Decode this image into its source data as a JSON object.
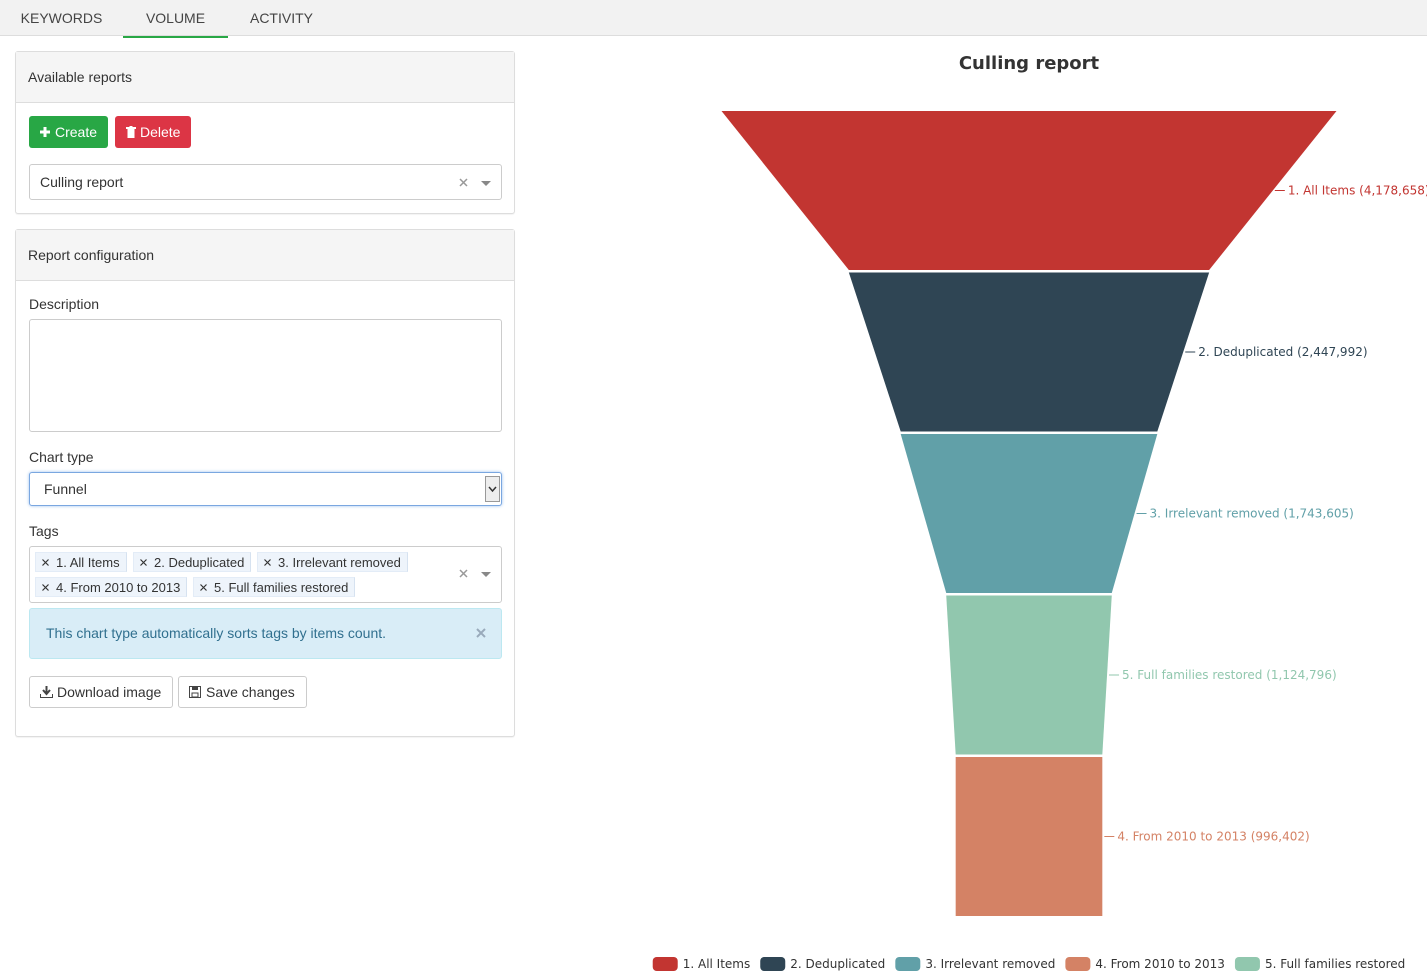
{
  "ui": {
    "tabs": [
      "KEYWORDS",
      "VOLUME",
      "ACTIVITY"
    ],
    "available_reports": {
      "heading": "Available reports",
      "create": "Create",
      "delete": "Delete",
      "selected_report": "Culling report"
    },
    "report_configuration": {
      "heading": "Report configuration",
      "description_label": "Description",
      "chart_type_label": "Chart type",
      "chart_type": "Funnel",
      "tags_label": "Tags",
      "tags": [
        "1. All Items",
        "2. Deduplicated",
        "3. Irrelevant removed",
        "4. From 2010 to 2013",
        "5. Full families restored"
      ],
      "alert": "This chart type automatically sorts tags by items count.",
      "download": "Download image",
      "save": "Save changes"
    }
  },
  "chart_data": {
    "type": "funnel",
    "title": "Culling report",
    "categories": [
      "1. All Items",
      "2. Deduplicated",
      "3. Irrelevant removed",
      "5. Full families restored",
      "4. From 2010 to 2013"
    ],
    "values": [
      4178658,
      2447992,
      1743605,
      1124796,
      996402
    ],
    "value_labels": [
      "1. All Items (4,178,658)",
      "2. Deduplicated (2,447,992)",
      "3. Irrelevant removed (1,743,605)",
      "5. Full families restored (1,124,796)",
      "4. From 2010 to 2013 (996,402)"
    ],
    "colors": [
      "#c23531",
      "#2f4554",
      "#61a0a8",
      "#91c7ae",
      "#d48265"
    ],
    "legend": true
  }
}
